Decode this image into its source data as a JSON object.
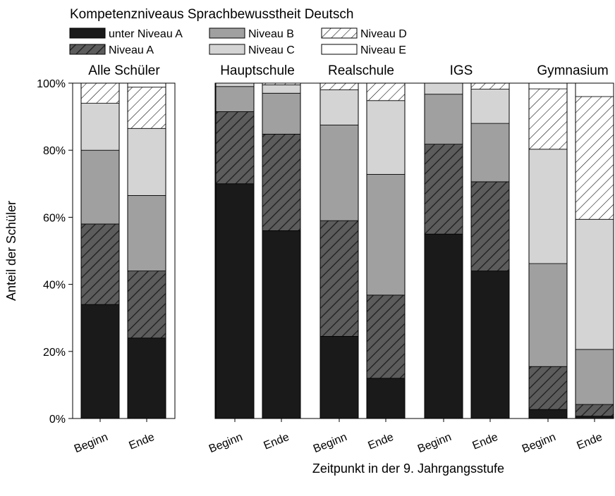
{
  "chart_data": {
    "type": "bar",
    "stacked": true,
    "title": "",
    "xlabel": "Zeitpunkt in der 9. Jahrgangsstufe",
    "ylabel": "Anteil der Schüler",
    "ylim": [
      0,
      100
    ],
    "yticks": [
      "0%",
      "20%",
      "40%",
      "60%",
      "80%",
      "100%"
    ],
    "legend": {
      "title": "Kompetenzniveaus Sprachbewusstheit Deutsch",
      "placement": "top-left",
      "entries": [
        "unter Niveau A",
        "Niveau A",
        "Niveau B",
        "Niveau C",
        "Niveau D",
        "Niveau E"
      ]
    },
    "series_styles": {
      "unter Niveau A": {
        "fill": "#1a1a1a",
        "pattern": "solid"
      },
      "Niveau A": {
        "fill": "#5c5c5c",
        "pattern": "hatch-dark"
      },
      "Niveau B": {
        "fill": "#a0a0a0",
        "pattern": "solid"
      },
      "Niveau C": {
        "fill": "#d4d4d4",
        "pattern": "solid"
      },
      "Niveau D": {
        "fill": "#ffffff",
        "pattern": "hatch-light"
      },
      "Niveau E": {
        "fill": "#ffffff",
        "pattern": "solid"
      }
    },
    "panels": [
      {
        "label": "Alle Schüler",
        "bars": [
          {
            "category": "Beginn",
            "values": [
              34,
              24,
              22,
              14,
              6,
              0
            ]
          },
          {
            "category": "Ende",
            "values": [
              24,
              20,
              22.5,
              20,
              12.3,
              1.2
            ]
          }
        ]
      },
      {
        "label": "Hauptschule",
        "bars": [
          {
            "category": "Beginn",
            "values": [
              70,
              21.5,
              7.5,
              1,
              0,
              0
            ]
          },
          {
            "category": "Ende",
            "values": [
              56,
              28.8,
              12.2,
              2.5,
              0.5,
              0
            ]
          }
        ]
      },
      {
        "label": "Realschule",
        "bars": [
          {
            "category": "Beginn",
            "values": [
              24.5,
              34.5,
              28.5,
              10.5,
              2,
              0
            ]
          },
          {
            "category": "Ende",
            "values": [
              12,
              24.8,
              36,
              22,
              5.2,
              0
            ]
          }
        ]
      },
      {
        "label": "IGS",
        "bars": [
          {
            "category": "Beginn",
            "values": [
              55,
              26.8,
              14.9,
              3.3,
              0,
              0
            ]
          },
          {
            "category": "Ende",
            "values": [
              44,
              26.6,
              17.4,
              10.2,
              1.8,
              0
            ]
          }
        ]
      },
      {
        "label": "Gymnasium",
        "bars": [
          {
            "category": "Beginn",
            "values": [
              2.7,
              12.8,
              30.7,
              34.1,
              18,
              1.7
            ]
          },
          {
            "category": "Ende",
            "values": [
              0.7,
              3.5,
              16.4,
              38.8,
              36.6,
              4
            ]
          }
        ]
      }
    ]
  }
}
